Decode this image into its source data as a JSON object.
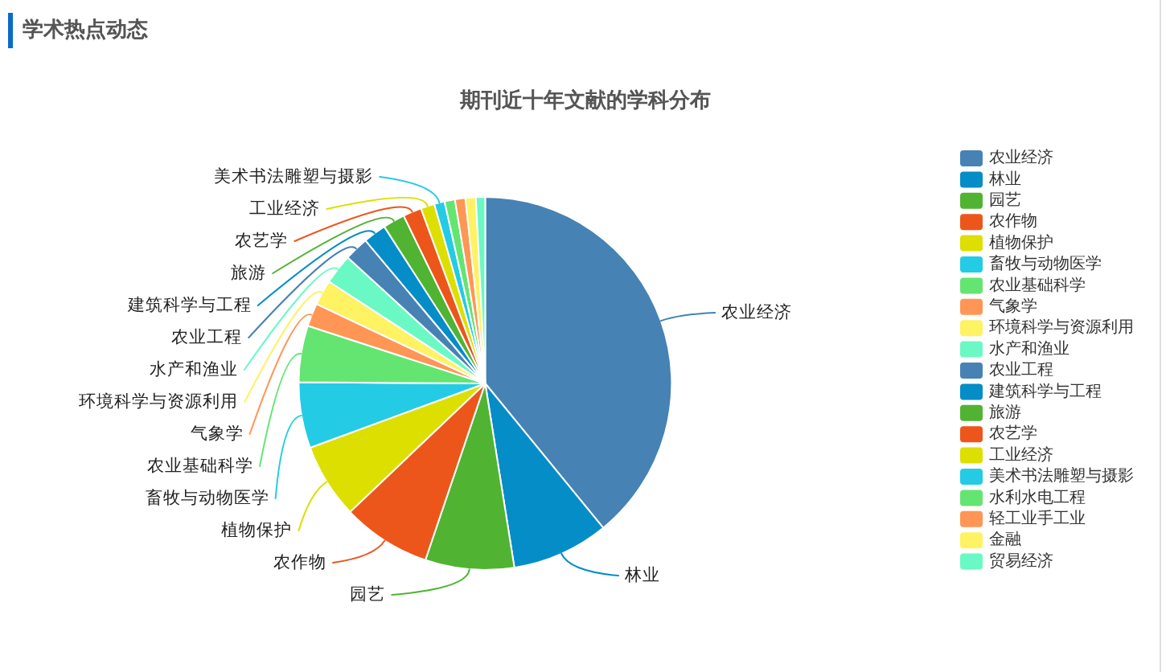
{
  "chart_data": {
    "type": "pie",
    "title": "期刊近十年文献的学科分布",
    "annotations": [
      "学术热点动态"
    ],
    "categories": [
      "农业经济",
      "林业",
      "园艺",
      "农作物",
      "植物保护",
      "畜牧与动物医学",
      "农业基础科学",
      "气象学",
      "环境科学与资源利用",
      "水产和渔业",
      "农业工程",
      "建筑科学与工程",
      "旅游",
      "农艺学",
      "工业经济",
      "美术书法雕塑与摄影",
      "水利水电工程",
      "轻工业手工业",
      "金融",
      "贸易经济"
    ],
    "values": [
      39.1,
      8.4,
      7.7,
      7.7,
      6.5,
      5.7,
      4.9,
      2.0,
      2.2,
      2.6,
      2.1,
      2.0,
      1.9,
      1.6,
      1.2,
      0.9,
      0.9,
      0.9,
      0.9,
      0.8
    ],
    "colors": [
      "#4682b4",
      "#058dc7",
      "#50b432",
      "#ed561b",
      "#dddf00",
      "#24cbe5",
      "#64e572",
      "#ff9655",
      "#fff263",
      "#6af9c4",
      "#4682b4",
      "#058dc7",
      "#50b432",
      "#ed561b",
      "#dddf00",
      "#24cbe5",
      "#64e572",
      "#ff9655",
      "#fff263",
      "#6af9c4"
    ],
    "legend": "right"
  }
}
